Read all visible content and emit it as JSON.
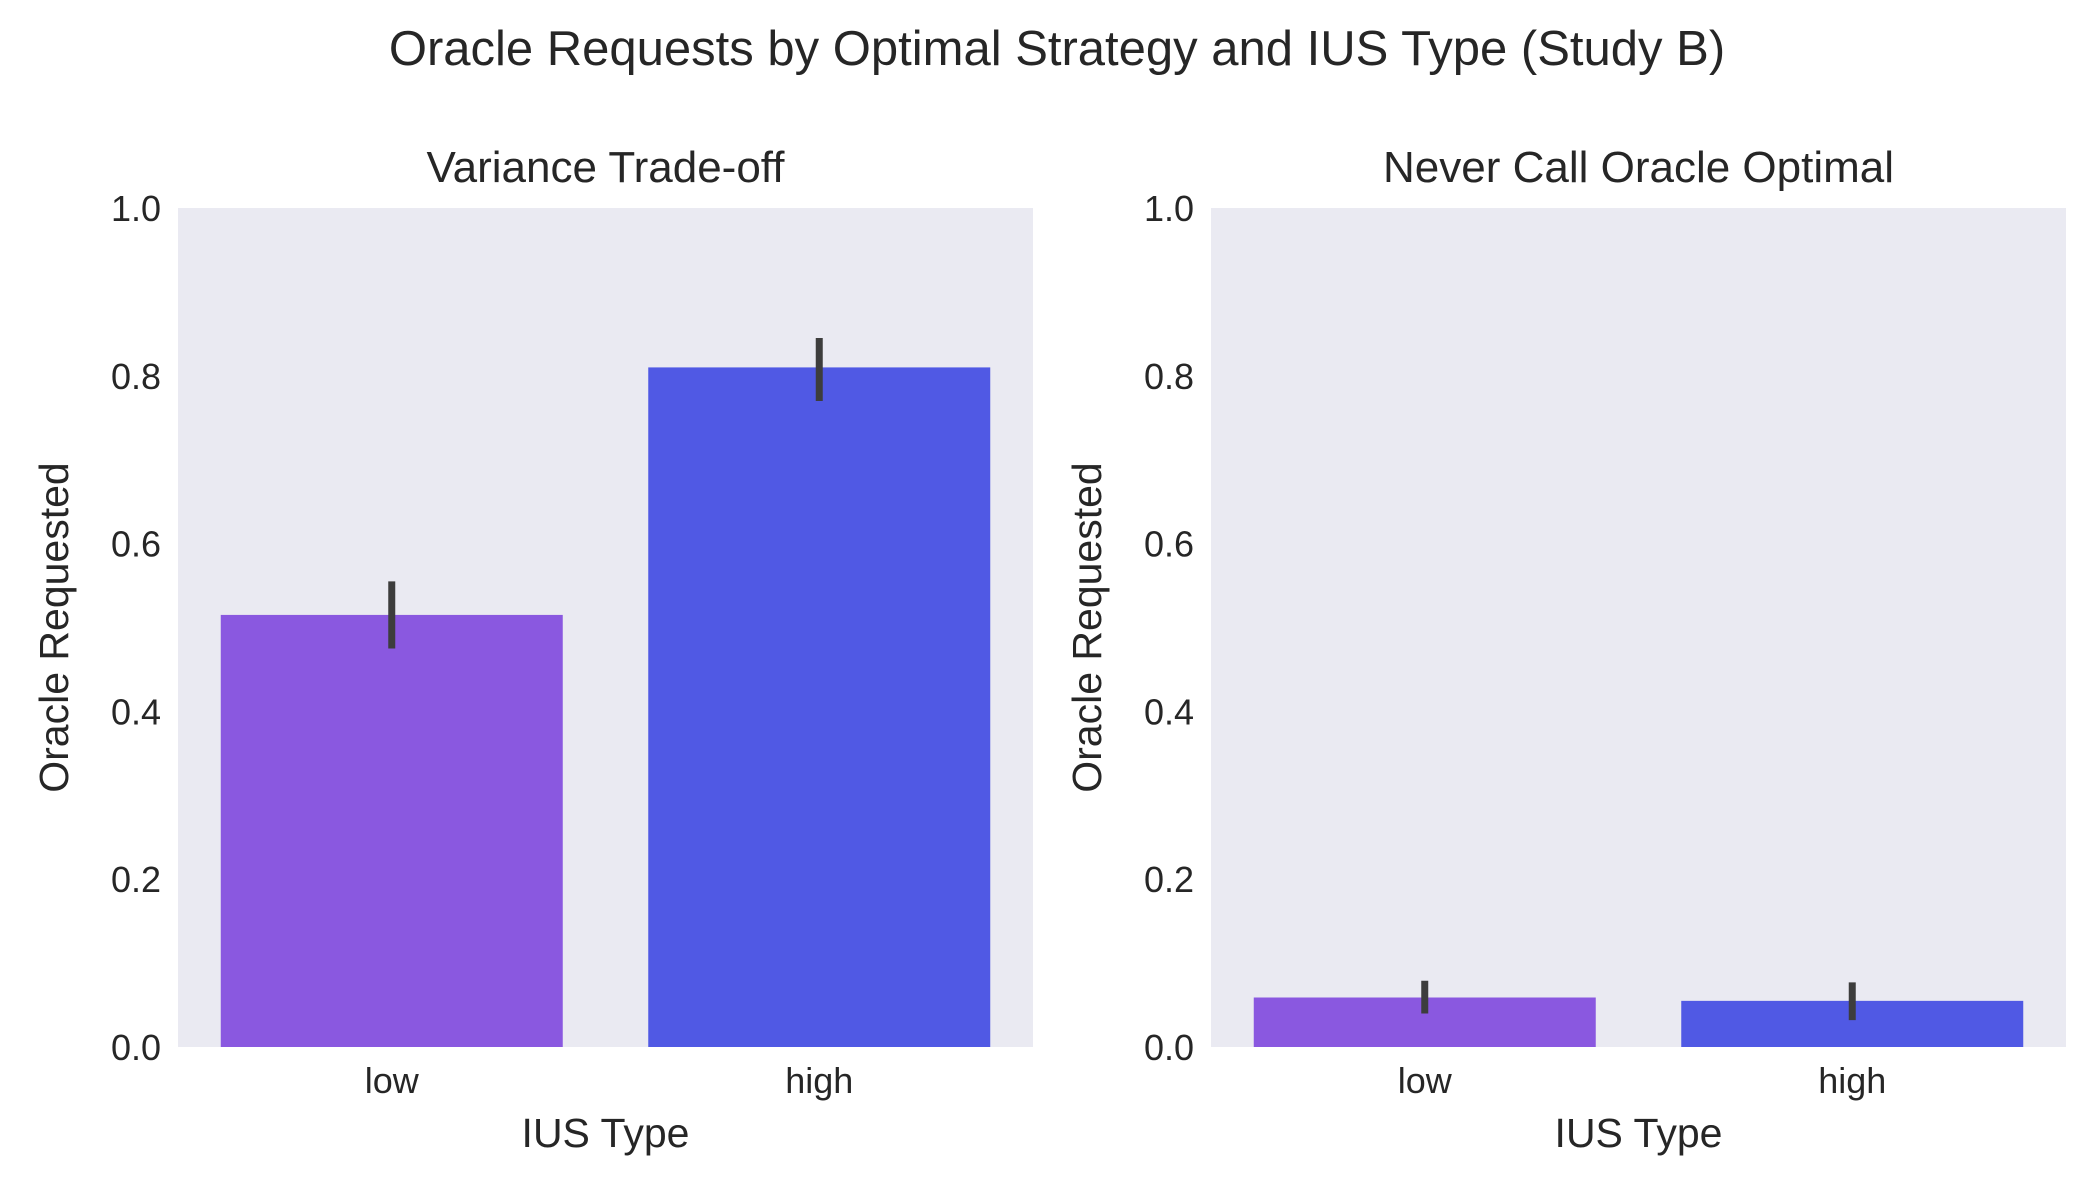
{
  "figure": {
    "suptitle": "Oracle Requests by Optimal Strategy and IUS Type (Study B)"
  },
  "colors": {
    "background": "#eaeaf2",
    "low": "#8a58e0",
    "high": "#5059e4",
    "error_bar": "#3d3d3d",
    "text": "#262626"
  },
  "chart_data": [
    {
      "type": "bar",
      "title": "Variance Trade-off",
      "xlabel": "IUS Type",
      "ylabel": "Oracle Requested",
      "categories": [
        "low",
        "high"
      ],
      "values": [
        0.515,
        0.81
      ],
      "error": [
        [
          0.475,
          0.555
        ],
        [
          0.77,
          0.845
        ]
      ],
      "ylim": [
        0,
        1.0
      ],
      "yticks": [
        "0.0",
        "0.2",
        "0.4",
        "0.6",
        "0.8",
        "1.0"
      ],
      "grid": false
    },
    {
      "type": "bar",
      "title": "Never Call Oracle Optimal",
      "xlabel": "IUS Type",
      "ylabel": "Oracle Requested",
      "categories": [
        "low",
        "high"
      ],
      "values": [
        0.059,
        0.055
      ],
      "error": [
        [
          0.04,
          0.079
        ],
        [
          0.032,
          0.077
        ]
      ],
      "ylim": [
        0,
        1.0
      ],
      "yticks": [
        "0.0",
        "0.2",
        "0.4",
        "0.6",
        "0.8",
        "1.0"
      ],
      "grid": false
    }
  ]
}
